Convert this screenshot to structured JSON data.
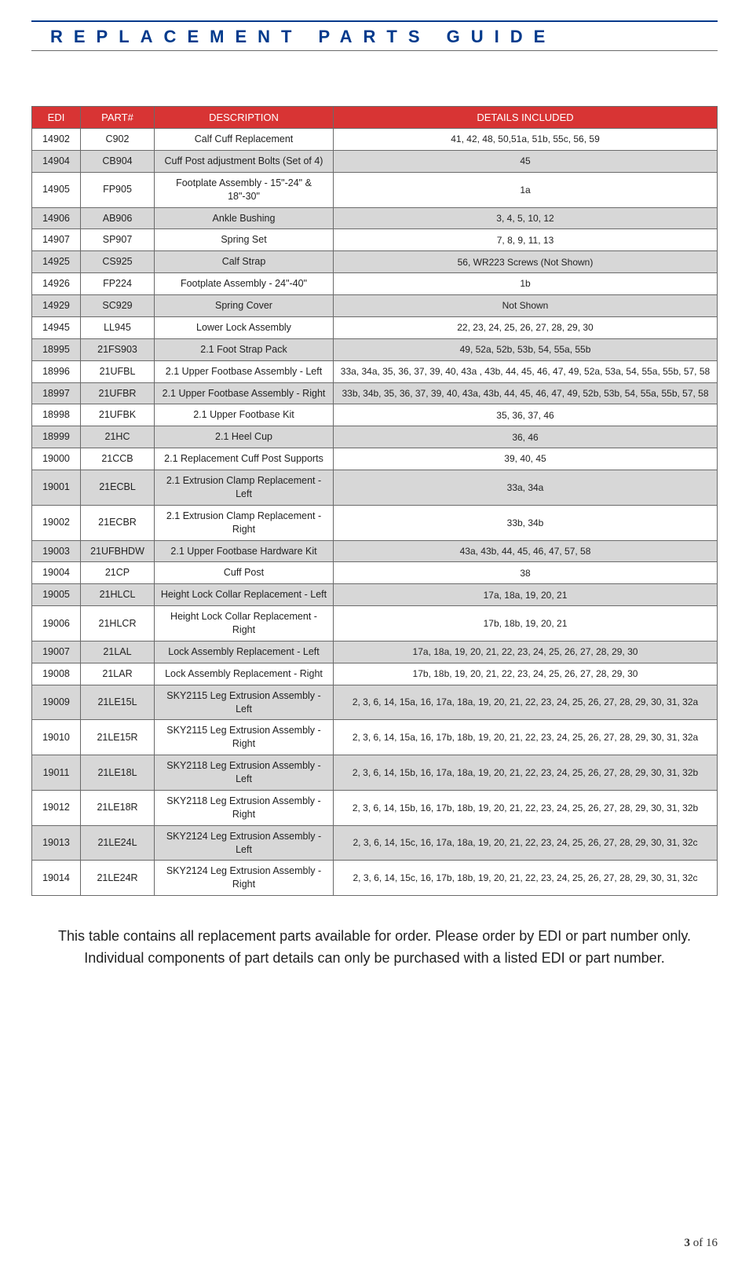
{
  "header": {
    "title": "REPLACEMENT PARTS GUIDE"
  },
  "table": {
    "columns": [
      "EDI",
      "PART#",
      "DESCRIPTION",
      "DETAILS INCLUDED"
    ],
    "rows": [
      {
        "edi": "14902",
        "part": "C902",
        "desc": "Calf Cuff Replacement",
        "details": "41, 42, 48, 50,51a, 51b, 55c, 56, 59",
        "shade": false
      },
      {
        "edi": "14904",
        "part": "CB904",
        "desc": "Cuff Post adjustment Bolts (Set of 4)",
        "details": "45",
        "shade": true
      },
      {
        "edi": "14905",
        "part": "FP905",
        "desc": "Footplate Assembly - 15\"-24\" & 18\"-30\"",
        "details": "1a",
        "shade": false
      },
      {
        "edi": "14906",
        "part": "AB906",
        "desc": "Ankle Bushing",
        "details": "3, 4, 5, 10, 12",
        "shade": true
      },
      {
        "edi": "14907",
        "part": "SP907",
        "desc": "Spring Set",
        "details": "7, 8, 9, 11, 13",
        "shade": false
      },
      {
        "edi": "14925",
        "part": "CS925",
        "desc": "Calf Strap",
        "details": "56, WR223 Screws (Not Shown)",
        "shade": true
      },
      {
        "edi": "14926",
        "part": "FP224",
        "desc": "Footplate Assembly - 24\"-40\"",
        "details": "1b",
        "shade": false
      },
      {
        "edi": "14929",
        "part": "SC929",
        "desc": "Spring Cover",
        "details": "Not Shown",
        "shade": true
      },
      {
        "edi": "14945",
        "part": "LL945",
        "desc": "Lower Lock Assembly",
        "details": "22, 23, 24, 25, 26, 27, 28, 29, 30",
        "shade": false
      },
      {
        "edi": "18995",
        "part": "21FS903",
        "desc": "2.1 Foot Strap Pack",
        "details": "49, 52a, 52b, 53b, 54, 55a, 55b",
        "shade": true
      },
      {
        "edi": "18996",
        "part": "21UFBL",
        "desc": "2.1 Upper Footbase Assembly - Left",
        "details": "33a, 34a, 35, 36, 37, 39, 40, 43a , 43b, 44, 45, 46, 47, 49, 52a, 53a, 54, 55a, 55b, 57, 58",
        "shade": false
      },
      {
        "edi": "18997",
        "part": "21UFBR",
        "desc": "2.1 Upper Footbase Assembly - Right",
        "details": "33b, 34b, 35, 36, 37, 39, 40, 43a, 43b, 44, 45, 46, 47, 49, 52b, 53b, 54, 55a, 55b, 57, 58",
        "shade": true
      },
      {
        "edi": "18998",
        "part": "21UFBK",
        "desc": "2.1 Upper Footbase Kit",
        "details": "35, 36, 37, 46",
        "shade": false
      },
      {
        "edi": "18999",
        "part": "21HC",
        "desc": "2.1 Heel Cup",
        "details": "36, 46",
        "shade": true
      },
      {
        "edi": "19000",
        "part": "21CCB",
        "desc": "2.1 Replacement Cuff Post Supports",
        "details": "39, 40, 45",
        "shade": false
      },
      {
        "edi": "19001",
        "part": "21ECBL",
        "desc": "2.1 Extrusion Clamp Replacement - Left",
        "details": "33a, 34a",
        "shade": true
      },
      {
        "edi": "19002",
        "part": "21ECBR",
        "desc": "2.1 Extrusion Clamp Replacement - Right",
        "details": "33b, 34b",
        "shade": false
      },
      {
        "edi": "19003",
        "part": "21UFBHDW",
        "desc": "2.1 Upper Footbase Hardware Kit",
        "details": "43a, 43b, 44, 45, 46, 47, 57, 58",
        "shade": true
      },
      {
        "edi": "19004",
        "part": "21CP",
        "desc": "Cuff Post",
        "details": "38",
        "shade": false
      },
      {
        "edi": "19005",
        "part": "21HLCL",
        "desc": "Height Lock Collar Replacement - Left",
        "details": "17a, 18a, 19, 20, 21",
        "shade": true
      },
      {
        "edi": "19006",
        "part": "21HLCR",
        "desc": "Height Lock Collar Replacement - Right",
        "details": "17b, 18b, 19, 20, 21",
        "shade": false
      },
      {
        "edi": "19007",
        "part": "21LAL",
        "desc": "Lock Assembly Replacement - Left",
        "details": "17a, 18a, 19, 20, 21, 22, 23, 24, 25, 26, 27, 28, 29, 30",
        "shade": true
      },
      {
        "edi": "19008",
        "part": "21LAR",
        "desc": "Lock Assembly Replacement - Right",
        "details": "17b, 18b, 19, 20, 21, 22, 23, 24, 25, 26, 27, 28, 29, 30",
        "shade": false
      },
      {
        "edi": "19009",
        "part": "21LE15L",
        "desc": "SKY2115 Leg Extrusion Assembly - Left",
        "details": "2, 3, 6, 14, 15a, 16, 17a, 18a, 19, 20, 21, 22, 23, 24, 25, 26, 27, 28, 29, 30, 31, 32a",
        "shade": true
      },
      {
        "edi": "19010",
        "part": "21LE15R",
        "desc": "SKY2115 Leg Extrusion Assembly - Right",
        "details": "2, 3, 6, 14, 15a, 16, 17b, 18b, 19, 20, 21, 22, 23, 24, 25, 26, 27, 28, 29, 30, 31, 32a",
        "shade": false
      },
      {
        "edi": "19011",
        "part": "21LE18L",
        "desc": "SKY2118 Leg Extrusion Assembly - Left",
        "details": "2, 3, 6, 14, 15b, 16, 17a, 18a, 19, 20, 21, 22, 23, 24, 25, 26, 27, 28, 29, 30, 31, 32b",
        "shade": true
      },
      {
        "edi": "19012",
        "part": "21LE18R",
        "desc": "SKY2118 Leg Extrusion Assembly - Right",
        "details": "2, 3, 6, 14, 15b, 16, 17b, 18b, 19, 20, 21, 22, 23, 24, 25, 26, 27, 28, 29, 30, 31, 32b",
        "shade": false
      },
      {
        "edi": "19013",
        "part": "21LE24L",
        "desc": "SKY2124 Leg Extrusion Assembly - Left",
        "details": "2, 3, 6, 14, 15c, 16, 17a, 18a, 19, 20, 21, 22, 23, 24, 25, 26, 27, 28, 29, 30, 31, 32c",
        "shade": true
      },
      {
        "edi": "19014",
        "part": "21LE24R",
        "desc": "SKY2124 Leg Extrusion Assembly - Right",
        "details": "2, 3, 6, 14, 15c, 16, 17b, 18b, 19, 20, 21, 22, 23, 24, 25, 26, 27, 28, 29, 30, 31, 32c",
        "shade": false
      }
    ]
  },
  "note_line1": "This table contains all replacement parts available for order. Please order by EDI or part number only.",
  "note_line2": "Individual components of part details can only be purchased with a listed EDI or part number.",
  "page_number": {
    "current": "3",
    "total": "16",
    "sep": " of "
  },
  "colors": {
    "header_text": "#003a8c",
    "header_rule": "#003a8c",
    "th_bg": "#d83434",
    "th_fg": "#ffffff",
    "border": "#6a6a6a",
    "shade_bg": "#d7d7d7",
    "body_bg": "#ffffff"
  }
}
